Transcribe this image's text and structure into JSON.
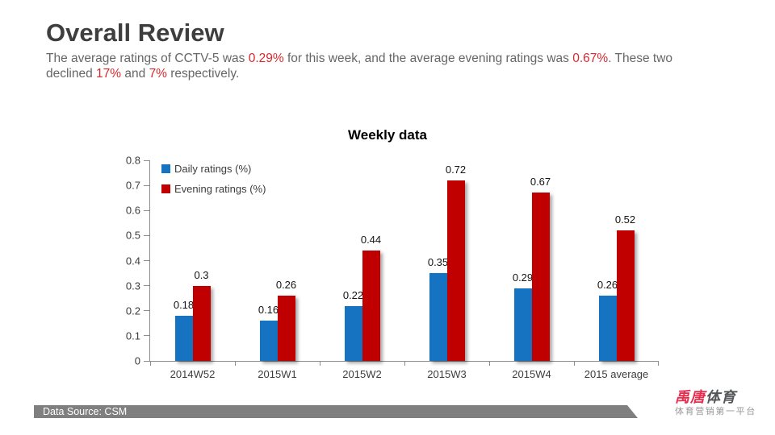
{
  "header": {
    "title": "Overall Review",
    "intro_segments": [
      {
        "text": "The average ratings of CCTV-5 was ",
        "red": false
      },
      {
        "text": "0.29%",
        "red": true
      },
      {
        "text": " for this week, and the average evening ratings was ",
        "red": false
      },
      {
        "text": "0.67%",
        "red": true
      },
      {
        "text": ". These two",
        "red": false
      },
      {
        "text": "declined ",
        "red": false
      },
      {
        "text": "17%",
        "red": true
      },
      {
        "text": " and ",
        "red": false
      },
      {
        "text": "7%",
        "red": true
      },
      {
        "text": " respectively.",
        "red": false
      }
    ],
    "highlight_color": "#D9282E"
  },
  "chart_data": {
    "type": "bar",
    "title": "Weekly data",
    "categories": [
      "2014W52",
      "2015W1",
      "2015W2",
      "2015W3",
      "2015W4",
      "2015 average"
    ],
    "series": [
      {
        "name": "Daily ratings (%)",
        "color": "#1673C2",
        "values": [
          0.18,
          0.16,
          0.22,
          0.35,
          0.29,
          0.26
        ],
        "labels": [
          "0.18",
          "0.16",
          "0.22",
          "0.35",
          "0.29",
          "0.26"
        ]
      },
      {
        "name": "Evening ratings (%)",
        "color": "#C00000",
        "values": [
          0.3,
          0.26,
          0.44,
          0.72,
          0.67,
          0.52
        ],
        "labels": [
          "0.3",
          "0.26",
          "0.44",
          "0.72",
          "0.67",
          "0.52"
        ]
      }
    ],
    "ylim": [
      0,
      0.8
    ],
    "ytick_labels": [
      "0",
      "0.1",
      "0.2",
      "0.3",
      "0.4",
      "0.5",
      "0.6",
      "0.7",
      "0.8"
    ],
    "grid": false,
    "legend_position": "top-left-inside",
    "axis_color": "#8C8C8C",
    "label_color": "#3C3C3C"
  },
  "footer": {
    "data_source": "Data Source: CSM",
    "bar_color": "#7F7F7F"
  },
  "logo": {
    "brand_red_text": "禹唐",
    "brand_dark_text": "体育",
    "tagline": "体育营销第一平台",
    "brand_red_color": "#E62E4E",
    "brand_dark_color": "#55565A"
  }
}
